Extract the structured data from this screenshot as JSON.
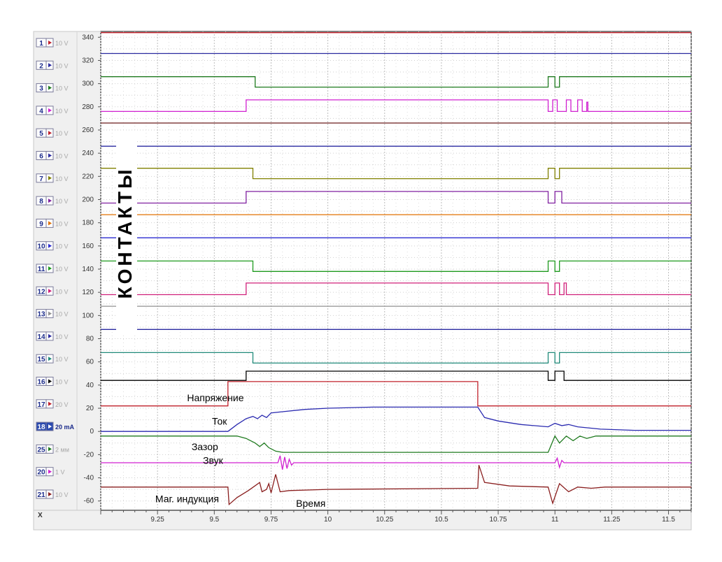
{
  "chart_data": {
    "type": "line",
    "x_ticks": [
      9.25,
      9.5,
      9.75,
      10,
      10.25,
      10.5,
      10.75,
      11,
      11.25,
      11.5
    ],
    "y_ticks": [
      340,
      320,
      300,
      280,
      260,
      240,
      220,
      200,
      180,
      160,
      140,
      120,
      100,
      80,
      60,
      40,
      20,
      0,
      -20,
      -40,
      -60
    ],
    "xlim": [
      9.0,
      11.6
    ],
    "ylim": [
      -68,
      345
    ],
    "grid": true,
    "vertical_label": "КОНТАКТЫ",
    "axis_corner_label": "X",
    "annotations": [
      {
        "text": "Напряжение",
        "x": 9.38,
        "y": 26
      },
      {
        "text": "Ток",
        "x": 9.49,
        "y": 6
      },
      {
        "text": "Зазор",
        "x": 9.4,
        "y": -16
      },
      {
        "text": "Звук",
        "x": 9.45,
        "y": -28
      },
      {
        "text": "Маг. индукция",
        "x": 9.24,
        "y": -61
      },
      {
        "text": "Время",
        "x": 9.86,
        "y": -65
      }
    ],
    "channels": [
      {
        "num": "1",
        "scale": "10 V",
        "color": "#c0202a",
        "active": false
      },
      {
        "num": "2",
        "scale": "10 V",
        "color": "#2a2aa0",
        "active": false
      },
      {
        "num": "3",
        "scale": "10 V",
        "color": "#1e7a1e",
        "active": false
      },
      {
        "num": "4",
        "scale": "10 V",
        "color": "#d020d0",
        "active": false
      },
      {
        "num": "5",
        "scale": "10 V",
        "color": "#c0202a",
        "active": false
      },
      {
        "num": "6",
        "scale": "10 V",
        "color": "#2a2aa0",
        "active": false
      },
      {
        "num": "7",
        "scale": "10 V",
        "color": "#808000",
        "active": false
      },
      {
        "num": "8",
        "scale": "10 V",
        "color": "#8020a0",
        "active": false
      },
      {
        "num": "9",
        "scale": "10 V",
        "color": "#e07000",
        "active": false
      },
      {
        "num": "10",
        "scale": "10 V",
        "color": "#2a2ad0",
        "active": false
      },
      {
        "num": "11",
        "scale": "10 V",
        "color": "#1e9a1e",
        "active": false
      },
      {
        "num": "12",
        "scale": "10 V",
        "color": "#d0207a",
        "active": false
      },
      {
        "num": "13",
        "scale": "10 V",
        "color": "#909090",
        "active": false
      },
      {
        "num": "14",
        "scale": "10 V",
        "color": "#2a2aa0",
        "active": false
      },
      {
        "num": "15",
        "scale": "10 V",
        "color": "#208a7a",
        "active": false
      },
      {
        "num": "16",
        "scale": "10 V",
        "color": "#000000",
        "active": false
      },
      {
        "num": "17",
        "scale": "20 V",
        "color": "#c0202a",
        "active": false
      },
      {
        "num": "18",
        "scale": "20 mA",
        "color": "#2a2ab0",
        "active": true
      },
      {
        "num": "25",
        "scale": "2 мм",
        "color": "#1e7a1e",
        "active": false
      },
      {
        "num": "20",
        "scale": "1 V",
        "color": "#d020d0",
        "active": false
      },
      {
        "num": "21",
        "scale": "10 V",
        "color": "#8a1e1e",
        "active": false
      }
    ],
    "series": [
      {
        "color": "#c0202a",
        "points": [
          [
            9.0,
            344
          ],
          [
            11.6,
            344
          ]
        ]
      },
      {
        "color": "#2a2aa0",
        "points": [
          [
            9.0,
            326
          ],
          [
            11.6,
            326
          ]
        ]
      },
      {
        "color": "#1e7a1e",
        "points": [
          [
            9.0,
            306
          ],
          [
            9.68,
            306
          ],
          [
            9.68,
            297
          ],
          [
            10.97,
            297
          ],
          [
            10.97,
            306
          ],
          [
            11.0,
            306
          ],
          [
            11.0,
            297
          ],
          [
            11.02,
            297
          ],
          [
            11.02,
            306
          ],
          [
            11.6,
            306
          ]
        ]
      },
      {
        "color": "#d020d0",
        "points": [
          [
            9.0,
            276
          ],
          [
            9.64,
            276
          ],
          [
            9.64,
            286
          ],
          [
            10.97,
            286
          ],
          [
            10.97,
            276
          ],
          [
            10.99,
            276
          ],
          [
            10.99,
            286
          ],
          [
            11.01,
            286
          ],
          [
            11.01,
            276
          ],
          [
            11.05,
            276
          ],
          [
            11.05,
            286
          ],
          [
            11.07,
            286
          ],
          [
            11.07,
            276
          ],
          [
            11.1,
            276
          ],
          [
            11.1,
            286
          ],
          [
            11.12,
            286
          ],
          [
            11.12,
            276
          ],
          [
            11.14,
            276
          ],
          [
            11.14,
            284
          ],
          [
            11.145,
            284
          ],
          [
            11.145,
            276
          ],
          [
            11.6,
            276
          ]
        ]
      },
      {
        "color": "#6a1a1a",
        "points": [
          [
            9.0,
            266
          ],
          [
            11.6,
            266
          ]
        ]
      },
      {
        "color": "#2a2aa0",
        "points": [
          [
            9.0,
            246
          ],
          [
            11.6,
            246
          ]
        ]
      },
      {
        "color": "#808000",
        "points": [
          [
            9.0,
            227
          ],
          [
            9.67,
            227
          ],
          [
            9.67,
            218
          ],
          [
            10.97,
            218
          ],
          [
            10.97,
            227
          ],
          [
            11.0,
            227
          ],
          [
            11.0,
            218
          ],
          [
            11.02,
            218
          ],
          [
            11.02,
            227
          ],
          [
            11.6,
            227
          ]
        ]
      },
      {
        "color": "#8020a0",
        "points": [
          [
            9.0,
            197
          ],
          [
            9.64,
            197
          ],
          [
            9.64,
            207
          ],
          [
            10.97,
            207
          ],
          [
            10.97,
            197
          ],
          [
            11.0,
            197
          ],
          [
            11.0,
            207
          ],
          [
            11.03,
            207
          ],
          [
            11.03,
            197
          ],
          [
            11.6,
            197
          ]
        ]
      },
      {
        "color": "#e07000",
        "points": [
          [
            9.0,
            187
          ],
          [
            11.6,
            187
          ]
        ]
      },
      {
        "color": "#2a2ad0",
        "points": [
          [
            9.0,
            167
          ],
          [
            11.6,
            167
          ]
        ]
      },
      {
        "color": "#1e9a1e",
        "points": [
          [
            9.0,
            147
          ],
          [
            9.67,
            147
          ],
          [
            9.67,
            138
          ],
          [
            10.97,
            138
          ],
          [
            10.97,
            147
          ],
          [
            11.0,
            147
          ],
          [
            11.0,
            138
          ],
          [
            11.02,
            138
          ],
          [
            11.02,
            147
          ],
          [
            11.6,
            147
          ]
        ]
      },
      {
        "color": "#d0207a",
        "points": [
          [
            9.0,
            118
          ],
          [
            9.64,
            118
          ],
          [
            9.64,
            128
          ],
          [
            10.97,
            128
          ],
          [
            10.97,
            118
          ],
          [
            11.0,
            118
          ],
          [
            11.0,
            128
          ],
          [
            11.02,
            128
          ],
          [
            11.02,
            118
          ],
          [
            11.04,
            118
          ],
          [
            11.04,
            128
          ],
          [
            11.05,
            128
          ],
          [
            11.05,
            118
          ],
          [
            11.6,
            118
          ]
        ]
      },
      {
        "color": "#909090",
        "points": [
          [
            9.0,
            108
          ],
          [
            11.6,
            108
          ]
        ]
      },
      {
        "color": "#2a2aa0",
        "points": [
          [
            9.0,
            88
          ],
          [
            11.6,
            88
          ]
        ]
      },
      {
        "color": "#208a7a",
        "points": [
          [
            9.0,
            68
          ],
          [
            9.67,
            68
          ],
          [
            9.67,
            59
          ],
          [
            10.97,
            59
          ],
          [
            10.97,
            68
          ],
          [
            11.0,
            68
          ],
          [
            11.0,
            59
          ],
          [
            11.02,
            59
          ],
          [
            11.02,
            68
          ],
          [
            11.6,
            68
          ]
        ]
      },
      {
        "color": "#000000",
        "points": [
          [
            9.0,
            44
          ],
          [
            9.64,
            44
          ],
          [
            9.64,
            52
          ],
          [
            10.97,
            52
          ],
          [
            10.97,
            44
          ],
          [
            11.0,
            44
          ],
          [
            11.0,
            52
          ],
          [
            11.04,
            52
          ],
          [
            11.04,
            44
          ],
          [
            11.6,
            44
          ]
        ]
      },
      {
        "color": "#c0202a",
        "points": [
          [
            9.0,
            22
          ],
          [
            9.56,
            22
          ],
          [
            9.56,
            43
          ],
          [
            10.66,
            43
          ],
          [
            10.66,
            22
          ],
          [
            11.6,
            22
          ]
        ]
      },
      {
        "color": "#2a2ab0",
        "points": [
          [
            9.0,
            0
          ],
          [
            9.56,
            0
          ],
          [
            9.6,
            6
          ],
          [
            9.64,
            11
          ],
          [
            9.67,
            13
          ],
          [
            9.69,
            11
          ],
          [
            9.71,
            14
          ],
          [
            9.73,
            12
          ],
          [
            9.75,
            16
          ],
          [
            9.8,
            17
          ],
          [
            9.9,
            19
          ],
          [
            10.0,
            20
          ],
          [
            10.2,
            21
          ],
          [
            10.4,
            21
          ],
          [
            10.66,
            21
          ],
          [
            10.69,
            12
          ],
          [
            10.75,
            9
          ],
          [
            10.85,
            6
          ],
          [
            10.97,
            4
          ],
          [
            11.0,
            7
          ],
          [
            11.03,
            5
          ],
          [
            11.06,
            6
          ],
          [
            11.1,
            4
          ],
          [
            11.2,
            2
          ],
          [
            11.35,
            1
          ],
          [
            11.6,
            1
          ]
        ]
      },
      {
        "color": "#1e7a1e",
        "points": [
          [
            9.0,
            -4
          ],
          [
            9.6,
            -4
          ],
          [
            9.64,
            -6
          ],
          [
            9.68,
            -10
          ],
          [
            9.7,
            -13
          ],
          [
            9.72,
            -10
          ],
          [
            9.74,
            -14
          ],
          [
            9.77,
            -17
          ],
          [
            9.8,
            -18
          ],
          [
            10.97,
            -18
          ],
          [
            11.0,
            -4
          ],
          [
            11.02,
            -10
          ],
          [
            11.05,
            -4
          ],
          [
            11.08,
            -8
          ],
          [
            11.11,
            -4
          ],
          [
            11.14,
            -6
          ],
          [
            11.18,
            -4
          ],
          [
            11.6,
            -4
          ]
        ]
      },
      {
        "color": "#d020d0",
        "points": [
          [
            9.0,
            -27
          ],
          [
            9.78,
            -27
          ],
          [
            9.79,
            -21
          ],
          [
            9.8,
            -33
          ],
          [
            9.81,
            -22
          ],
          [
            9.82,
            -32
          ],
          [
            9.83,
            -24
          ],
          [
            9.84,
            -29
          ],
          [
            9.85,
            -27
          ],
          [
            11.0,
            -27
          ],
          [
            11.01,
            -23
          ],
          [
            11.02,
            -31
          ],
          [
            11.03,
            -25
          ],
          [
            11.04,
            -27
          ],
          [
            11.6,
            -27
          ]
        ]
      },
      {
        "color": "#8a1e1e",
        "points": [
          [
            9.0,
            -48
          ],
          [
            9.56,
            -48
          ],
          [
            9.565,
            -63
          ],
          [
            9.6,
            -57
          ],
          [
            9.65,
            -51
          ],
          [
            9.7,
            -44
          ],
          [
            9.71,
            -52
          ],
          [
            9.73,
            -50
          ],
          [
            9.74,
            -45
          ],
          [
            9.75,
            -53
          ],
          [
            9.77,
            -37
          ],
          [
            9.79,
            -52
          ],
          [
            9.83,
            -51
          ],
          [
            10.0,
            -50
          ],
          [
            10.66,
            -49
          ],
          [
            10.665,
            -29
          ],
          [
            10.69,
            -44
          ],
          [
            10.8,
            -47
          ],
          [
            10.97,
            -48
          ],
          [
            10.99,
            -62
          ],
          [
            11.02,
            -45
          ],
          [
            11.06,
            -52
          ],
          [
            11.1,
            -48
          ],
          [
            11.16,
            -49
          ],
          [
            11.22,
            -48
          ],
          [
            11.6,
            -48
          ]
        ]
      }
    ]
  }
}
